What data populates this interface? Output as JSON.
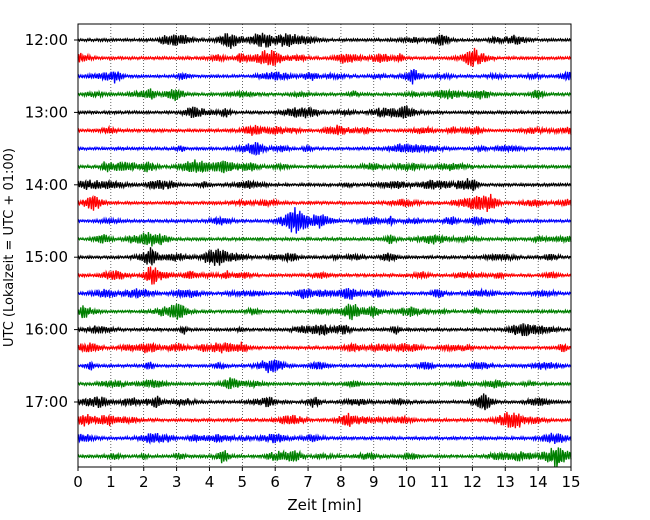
{
  "chart_data": {
    "type": "line",
    "title": "",
    "xlabel": "Zeit  [min]",
    "ylabel": "UTC (Lokalzeit = UTC + 01:00)",
    "xlim": [
      0,
      15
    ],
    "x_ticks": [
      "0",
      "1",
      "2",
      "3",
      "4",
      "5",
      "6",
      "7",
      "8",
      "9",
      "10",
      "11",
      "12",
      "13",
      "14",
      "15"
    ],
    "y_tick_labels": [
      "12:00",
      "13:00",
      "14:00",
      "15:00",
      "16:00",
      "17:00"
    ],
    "grid": "vertical dotted lines at each minute",
    "trace_interval_minutes": 15,
    "trace_start_times": [
      "12:00",
      "12:15",
      "12:30",
      "12:45",
      "13:00",
      "13:15",
      "13:30",
      "13:45",
      "14:00",
      "14:15",
      "14:30",
      "14:45",
      "15:00",
      "15:15",
      "15:30",
      "15:45",
      "16:00",
      "16:15",
      "16:30",
      "16:45",
      "17:00",
      "17:15",
      "17:30",
      "17:45"
    ],
    "trace_colors": [
      "#000000",
      "#ff0000",
      "#0000ff",
      "#008000"
    ],
    "trace_note": "Seismogram helicorder: continuous noise traces, one per 15-minute window; larger burst near 14.6 min on 17:45 trace"
  }
}
